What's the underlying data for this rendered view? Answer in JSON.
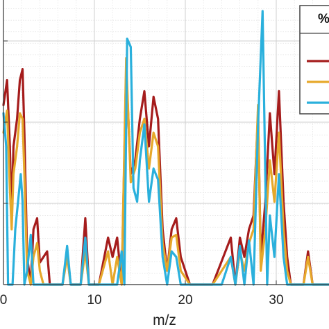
{
  "chart_data": {
    "type": "line",
    "xlabel": "m/z",
    "ylabel": "",
    "xlim": [
      0,
      36
    ],
    "ylim": [
      0,
      1.0
    ],
    "xticks": [
      "0",
      "10",
      "20",
      "30"
    ],
    "grid": true,
    "legend": {
      "title": "%",
      "placement": "top-right"
    },
    "series": [
      {
        "color": "#a51c1c",
        "points": [
          [
            0,
            0.65
          ],
          [
            0.4,
            0.74
          ],
          [
            0.7,
            0.5
          ],
          [
            0.9,
            0.25
          ],
          [
            1.1,
            0.5
          ],
          [
            1.5,
            0.6
          ],
          [
            1.8,
            0.74
          ],
          [
            2.1,
            0.78
          ],
          [
            2.3,
            0.55
          ],
          [
            2.6,
            0.1
          ],
          [
            3.0,
            0.0
          ],
          [
            3.3,
            0.2
          ],
          [
            3.7,
            0.24
          ],
          [
            4.0,
            0.08
          ],
          [
            4.4,
            0.1
          ],
          [
            4.8,
            0.12
          ],
          [
            5.1,
            0.0
          ],
          [
            5.3,
            0.0
          ],
          [
            6.5,
            0.0
          ],
          [
            7.0,
            0.12
          ],
          [
            7.4,
            0.0
          ],
          [
            8.5,
            0.0
          ],
          [
            9.0,
            0.24
          ],
          [
            9.4,
            0.0
          ],
          [
            10.5,
            0.0
          ],
          [
            11.5,
            0.17
          ],
          [
            12.0,
            0.1
          ],
          [
            12.5,
            0.17
          ],
          [
            13.0,
            0.0
          ],
          [
            13.5,
            0.78
          ],
          [
            14.0,
            0.4
          ],
          [
            14.5,
            0.45
          ],
          [
            15.0,
            0.6
          ],
          [
            15.5,
            0.7
          ],
          [
            16.0,
            0.5
          ],
          [
            16.5,
            0.68
          ],
          [
            17.0,
            0.6
          ],
          [
            17.5,
            0.2
          ],
          [
            18.0,
            0.05
          ],
          [
            18.5,
            0.2
          ],
          [
            19.0,
            0.24
          ],
          [
            19.5,
            0.1
          ],
          [
            20.5,
            0.0
          ],
          [
            23.0,
            0.0
          ],
          [
            25.0,
            0.17
          ],
          [
            25.5,
            0.0
          ],
          [
            26.0,
            0.17
          ],
          [
            26.5,
            0.1
          ],
          [
            27.0,
            0.2
          ],
          [
            27.5,
            0.25
          ],
          [
            28.0,
            0.62
          ],
          [
            28.3,
            0.1
          ],
          [
            28.8,
            0.3
          ],
          [
            29.3,
            0.62
          ],
          [
            29.8,
            0.4
          ],
          [
            30.3,
            0.7
          ],
          [
            30.8,
            0.3
          ],
          [
            31.2,
            0.1
          ],
          [
            31.6,
            0.0
          ],
          [
            33.0,
            0.0
          ],
          [
            33.5,
            0.12
          ],
          [
            34.0,
            0.0
          ],
          [
            36.0,
            0.0
          ]
        ]
      },
      {
        "color": "#e6a82a",
        "points": [
          [
            0,
            0.55
          ],
          [
            0.4,
            0.63
          ],
          [
            0.7,
            0.35
          ],
          [
            0.9,
            0.2
          ],
          [
            1.1,
            0.4
          ],
          [
            1.5,
            0.5
          ],
          [
            1.8,
            0.62
          ],
          [
            2.1,
            0.6
          ],
          [
            2.3,
            0.4
          ],
          [
            2.6,
            0.05
          ],
          [
            3.0,
            0.0
          ],
          [
            3.3,
            0.1
          ],
          [
            3.7,
            0.15
          ],
          [
            4.0,
            0.05
          ],
          [
            4.4,
            0.0
          ],
          [
            6.5,
            0.0
          ],
          [
            7.0,
            0.1
          ],
          [
            7.4,
            0.0
          ],
          [
            8.5,
            0.0
          ],
          [
            9.0,
            0.12
          ],
          [
            9.4,
            0.0
          ],
          [
            10.5,
            0.0
          ],
          [
            11.5,
            0.12
          ],
          [
            12.0,
            0.0
          ],
          [
            12.5,
            0.1
          ],
          [
            13.0,
            0.0
          ],
          [
            13.5,
            0.82
          ],
          [
            14.0,
            0.37
          ],
          [
            14.5,
            0.42
          ],
          [
            15.0,
            0.55
          ],
          [
            15.5,
            0.6
          ],
          [
            16.0,
            0.42
          ],
          [
            16.5,
            0.55
          ],
          [
            17.0,
            0.5
          ],
          [
            17.5,
            0.15
          ],
          [
            18.0,
            0.05
          ],
          [
            18.5,
            0.17
          ],
          [
            19.0,
            0.18
          ],
          [
            19.5,
            0.05
          ],
          [
            20.5,
            0.0
          ],
          [
            23.0,
            0.0
          ],
          [
            25.0,
            0.1
          ],
          [
            25.5,
            0.0
          ],
          [
            26.0,
            0.12
          ],
          [
            26.5,
            0.05
          ],
          [
            27.0,
            0.15
          ],
          [
            27.5,
            0.2
          ],
          [
            28.0,
            0.65
          ],
          [
            28.3,
            0.05
          ],
          [
            28.8,
            0.2
          ],
          [
            29.3,
            0.45
          ],
          [
            29.8,
            0.3
          ],
          [
            30.3,
            0.55
          ],
          [
            30.8,
            0.2
          ],
          [
            31.2,
            0.05
          ],
          [
            31.6,
            0.0
          ],
          [
            33.0,
            0.0
          ],
          [
            33.5,
            0.1
          ],
          [
            34.0,
            0.0
          ],
          [
            36.0,
            0.0
          ]
        ]
      },
      {
        "color": "#2ab0dc",
        "points": [
          [
            0,
            0.62
          ],
          [
            0.3,
            0.5
          ],
          [
            0.5,
            0.0
          ],
          [
            1.0,
            0.0
          ],
          [
            1.3,
            0.2
          ],
          [
            1.6,
            0.3
          ],
          [
            1.9,
            0.4
          ],
          [
            2.1,
            0.3
          ],
          [
            2.3,
            0.0
          ],
          [
            2.6,
            0.05
          ],
          [
            3.0,
            0.18
          ],
          [
            3.3,
            0.0
          ],
          [
            4.4,
            0.0
          ],
          [
            5.5,
            0.0
          ],
          [
            6.5,
            0.0
          ],
          [
            7.0,
            0.14
          ],
          [
            7.4,
            0.0
          ],
          [
            8.5,
            0.0
          ],
          [
            9.0,
            0.17
          ],
          [
            9.4,
            0.0
          ],
          [
            10.5,
            0.0
          ],
          [
            11.5,
            0.0
          ],
          [
            12.5,
            0.0
          ],
          [
            13.0,
            0.12
          ],
          [
            13.3,
            0.0
          ],
          [
            13.6,
            0.89
          ],
          [
            14.0,
            0.86
          ],
          [
            14.3,
            0.35
          ],
          [
            14.7,
            0.3
          ],
          [
            15.0,
            0.45
          ],
          [
            15.5,
            0.58
          ],
          [
            16.0,
            0.3
          ],
          [
            16.5,
            0.42
          ],
          [
            17.0,
            0.38
          ],
          [
            17.5,
            0.1
          ],
          [
            18.0,
            0.0
          ],
          [
            18.5,
            0.12
          ],
          [
            19.0,
            0.1
          ],
          [
            19.5,
            0.0
          ],
          [
            20.5,
            0.0
          ],
          [
            23.0,
            0.0
          ],
          [
            24.0,
            0.0
          ],
          [
            25.0,
            0.1
          ],
          [
            25.5,
            0.0
          ],
          [
            26.0,
            0.14
          ],
          [
            26.5,
            0.0
          ],
          [
            27.0,
            0.16
          ],
          [
            27.5,
            0.0
          ],
          [
            28.0,
            0.58
          ],
          [
            28.5,
            0.99
          ],
          [
            29.0,
            0.0
          ],
          [
            29.3,
            0.25
          ],
          [
            29.8,
            0.1
          ],
          [
            30.3,
            0.4
          ],
          [
            30.8,
            0.1
          ],
          [
            31.2,
            0.0
          ],
          [
            33.0,
            0.0
          ],
          [
            36.0,
            0.0
          ]
        ]
      }
    ]
  }
}
